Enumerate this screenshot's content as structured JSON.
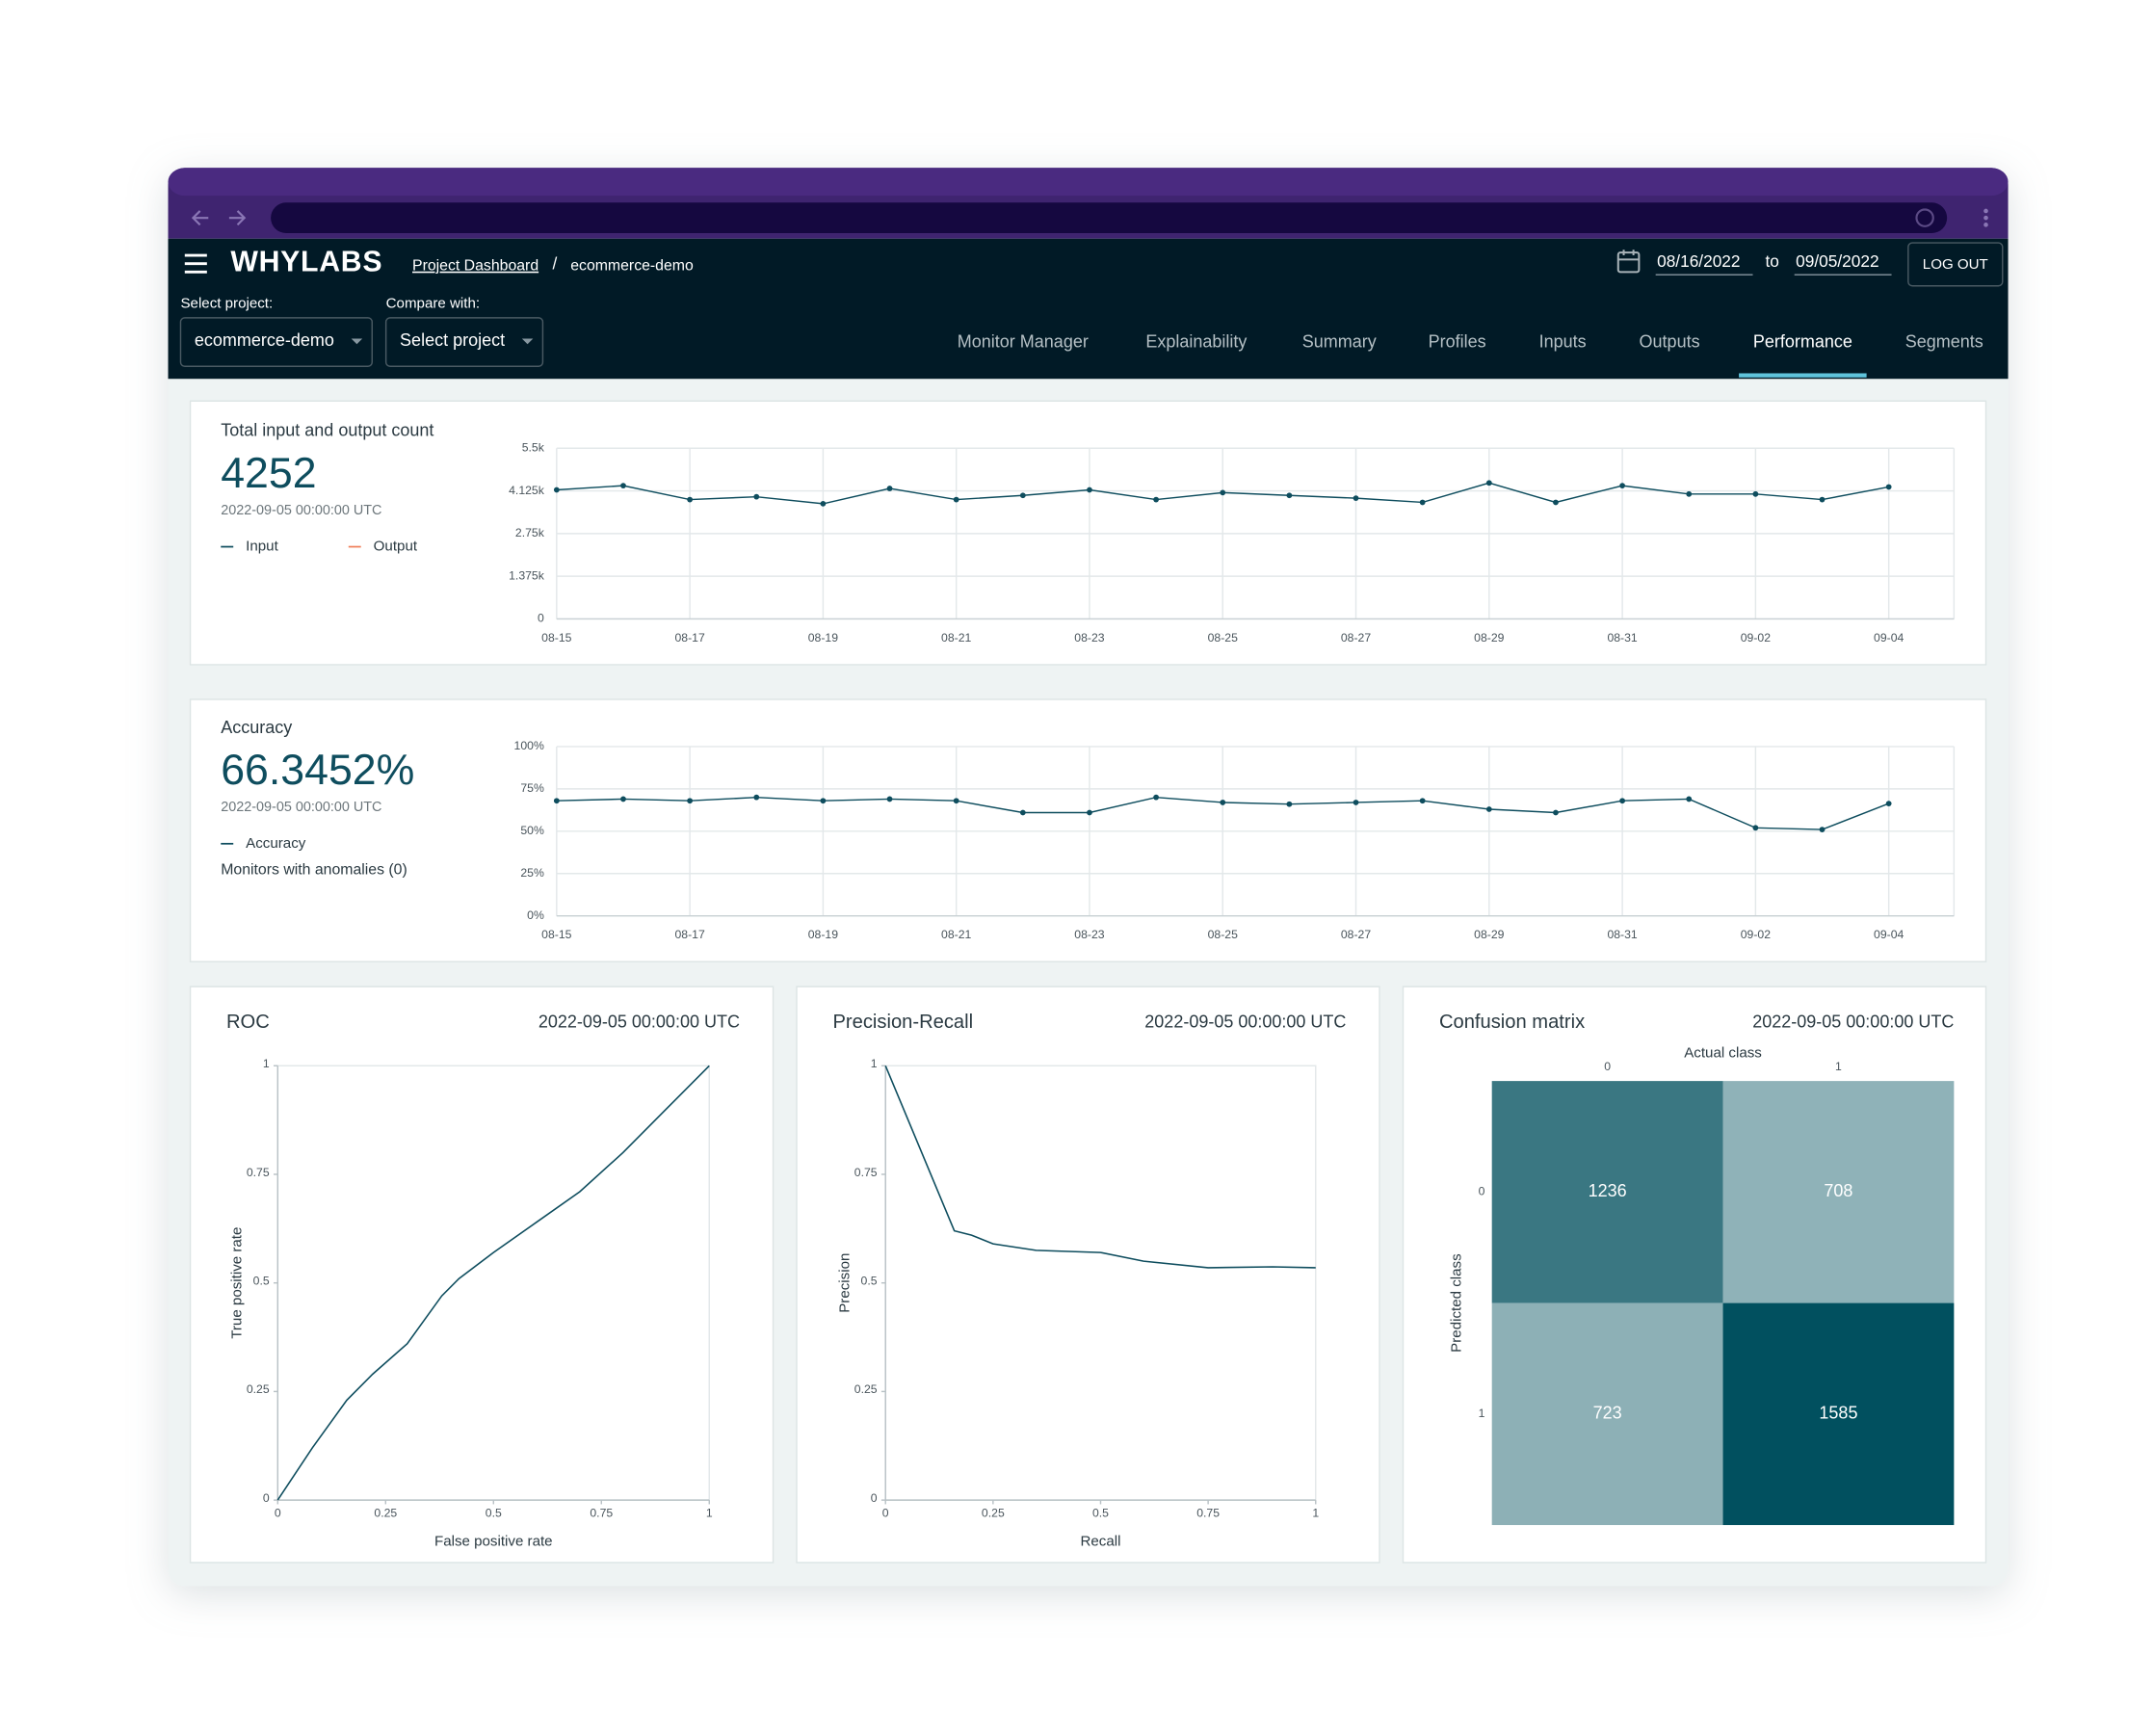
{
  "header": {
    "logo": "WHYLABS",
    "breadcrumb_link": "Project Dashboard",
    "breadcrumb_separator": "/",
    "breadcrumb_current": "ecommerce-demo",
    "date_from": "08/16/2022",
    "date_to_word": "to",
    "date_to": "09/05/2022",
    "logout": "LOG OUT",
    "select_project": {
      "label": "Select project:",
      "value": "ecommerce-demo"
    },
    "compare": {
      "label": "Compare with:",
      "value": "Select project"
    },
    "tabs": [
      "Monitor Manager",
      "Explainability",
      "Summary",
      "Profiles",
      "Inputs",
      "Outputs",
      "Performance",
      "Segments"
    ],
    "active_tab": 6
  },
  "count_panel": {
    "title": "Total input and output count",
    "value": "4252",
    "timestamp": "2022-09-05 00:00:00 UTC",
    "chart": {
      "type": "line",
      "categories": [
        "08-15",
        null,
        "08-17",
        null,
        "08-19",
        null,
        "08-21",
        null,
        "08-23",
        null,
        "08-25",
        null,
        "08-27",
        null,
        "08-29",
        null,
        "08-31",
        null,
        "09-02",
        null,
        "09-04"
      ],
      "series": [
        {
          "name": "Input",
          "color": "#0e4d5e",
          "values": [
            4158,
            4293,
            3845,
            3935,
            3711,
            4203,
            3845,
            3980,
            4158,
            3845,
            4069,
            3980,
            3890,
            3756,
            4382,
            3756,
            4293,
            4024,
            4024,
            3845,
            4252
          ]
        },
        {
          "name": "Output",
          "color": "#f07f5a",
          "values": [
            null,
            null,
            null,
            null,
            null,
            null,
            null,
            null,
            null,
            null,
            null,
            null,
            null,
            null,
            null,
            null,
            null,
            null,
            null,
            null,
            null
          ]
        }
      ],
      "ylim": [
        0,
        5500
      ],
      "yticks": [
        0,
        {
          "value": 1375,
          "label": "1.375k"
        },
        {
          "value": 2750,
          "label": "2.75k"
        },
        {
          "value": 4125,
          "label": "4.125k"
        },
        {
          "value": 5500,
          "label": "5.5k"
        }
      ],
      "grid": true
    }
  },
  "accuracy_panel": {
    "title": "Accuracy",
    "value": "66.3452%",
    "timestamp": "2022-09-05 00:00:00 UTC",
    "monitors": "Monitors with anomalies (0)",
    "chart": {
      "type": "line",
      "categories": [
        "08-15",
        null,
        "08-17",
        null,
        "08-19",
        null,
        "08-21",
        null,
        "08-23",
        null,
        "08-25",
        null,
        "08-27",
        null,
        "08-29",
        null,
        "08-31",
        null,
        "09-02",
        null,
        "09-04"
      ],
      "series": [
        {
          "name": "Accuracy",
          "color": "#0e4d5e",
          "values": [
            68,
            69,
            68,
            70,
            68,
            69,
            68,
            61,
            61,
            70,
            67,
            66,
            67,
            68,
            63,
            61,
            68,
            69,
            52,
            51,
            66.3452
          ]
        }
      ],
      "ylim": [
        0,
        100
      ],
      "yticks": [
        {
          "value": 0,
          "label": "0%"
        },
        {
          "value": 25,
          "label": "25%"
        },
        {
          "value": 50,
          "label": "50%"
        },
        {
          "value": 75,
          "label": "75%"
        },
        {
          "value": 100,
          "label": "100%"
        }
      ],
      "grid": true
    }
  },
  "roc_panel": {
    "title": "ROC",
    "timestamp": "2022-09-05 00:00:00 UTC",
    "chart": {
      "type": "line",
      "x_label": "False positive rate",
      "y_label": "True positive rate",
      "x": [
        0,
        0.08,
        0.16,
        0.22,
        0.3,
        0.38,
        0.42,
        0.5,
        0.6,
        0.7,
        0.8,
        0.9,
        0.95,
        1
      ],
      "series": [
        {
          "color": "#0e4d5e",
          "values": [
            0,
            0.12,
            0.23,
            0.29,
            0.36,
            0.47,
            0.51,
            0.57,
            0.64,
            0.71,
            0.8,
            0.9,
            0.95,
            1
          ]
        }
      ],
      "xlim": [
        0,
        1
      ],
      "ylim": [
        0,
        1
      ],
      "xticks": [
        0,
        0.25,
        0.5,
        0.75,
        1
      ],
      "yticks": [
        0,
        0.25,
        0.5,
        0.75,
        1
      ]
    }
  },
  "pr_panel": {
    "title": "Precision-Recall",
    "timestamp": "2022-09-05 00:00:00 UTC",
    "chart": {
      "type": "line",
      "x_label": "Recall",
      "y_label": "Precision",
      "x": [
        0,
        0.16,
        0.2,
        0.25,
        0.35,
        0.5,
        0.6,
        0.75,
        0.9,
        1
      ],
      "series": [
        {
          "color": "#0e4d5e",
          "values": [
            1,
            0.62,
            0.61,
            0.59,
            0.575,
            0.57,
            0.55,
            0.535,
            0.537,
            0.535
          ]
        }
      ],
      "xlim": [
        0,
        1
      ],
      "ylim": [
        0,
        1
      ],
      "xticks": [
        0,
        0.25,
        0.5,
        0.75,
        1
      ],
      "yticks": [
        0,
        0.25,
        0.5,
        0.75,
        1
      ]
    }
  },
  "confusion_panel": {
    "title": "Confusion matrix",
    "timestamp": "2022-09-05 00:00:00 UTC",
    "chart": {
      "type": "heatmap",
      "x_label": "Actual class",
      "y_label": "Predicted class",
      "columns": [
        "0",
        "1"
      ],
      "rows": [
        "0",
        "1"
      ],
      "values": [
        [
          1236,
          708
        ],
        [
          723,
          1585
        ]
      ],
      "color_scale": [
        "#8fb2b8",
        "#01505f"
      ]
    }
  }
}
